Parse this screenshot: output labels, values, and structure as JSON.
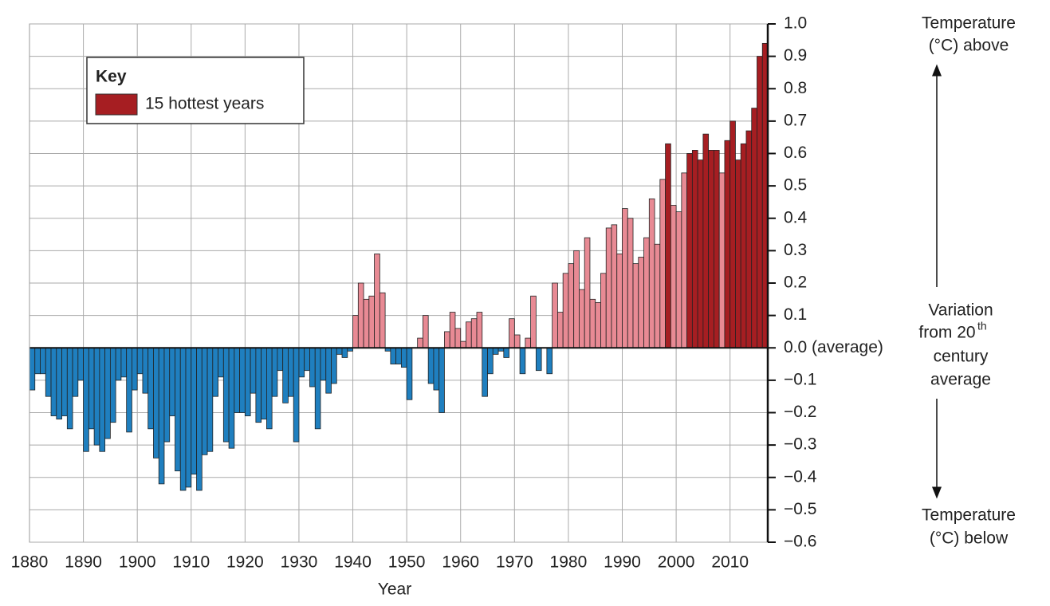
{
  "chart_data": {
    "type": "bar",
    "x_label": "Year",
    "legend": {
      "title": "Key",
      "label": "15 hottest years"
    },
    "annotations": {
      "above": [
        "Temperature",
        "(°C) above"
      ],
      "middle": [
        "Variation",
        "from 20",
        "century",
        "average"
      ],
      "middle_superscript": "th",
      "below": [
        "Temperature",
        "(°C) below"
      ]
    },
    "x": [
      1880,
      1881,
      1882,
      1883,
      1884,
      1885,
      1886,
      1887,
      1888,
      1889,
      1890,
      1891,
      1892,
      1893,
      1894,
      1895,
      1896,
      1897,
      1898,
      1899,
      1900,
      1901,
      1902,
      1903,
      1904,
      1905,
      1906,
      1907,
      1908,
      1909,
      1910,
      1911,
      1912,
      1913,
      1914,
      1915,
      1916,
      1917,
      1918,
      1919,
      1920,
      1921,
      1922,
      1923,
      1924,
      1925,
      1926,
      1927,
      1928,
      1929,
      1930,
      1931,
      1932,
      1933,
      1934,
      1935,
      1936,
      1937,
      1938,
      1939,
      1940,
      1941,
      1942,
      1943,
      1944,
      1945,
      1946,
      1947,
      1948,
      1949,
      1950,
      1951,
      1952,
      1953,
      1954,
      1955,
      1956,
      1957,
      1958,
      1959,
      1960,
      1961,
      1962,
      1963,
      1964,
      1965,
      1966,
      1967,
      1968,
      1969,
      1970,
      1971,
      1972,
      1973,
      1974,
      1975,
      1976,
      1977,
      1978,
      1979,
      1980,
      1981,
      1982,
      1983,
      1984,
      1985,
      1986,
      1987,
      1988,
      1989,
      1990,
      1991,
      1992,
      1993,
      1994,
      1995,
      1996,
      1997,
      1998,
      1999,
      2000,
      2001,
      2002,
      2003,
      2004,
      2005,
      2006,
      2007,
      2008,
      2009,
      2010,
      2011,
      2012,
      2013,
      2014,
      2015,
      2016
    ],
    "values": [
      -0.13,
      -0.08,
      -0.08,
      -0.15,
      -0.21,
      -0.22,
      -0.21,
      -0.25,
      -0.15,
      -0.1,
      -0.32,
      -0.25,
      -0.3,
      -0.32,
      -0.28,
      -0.23,
      -0.1,
      -0.09,
      -0.26,
      -0.13,
      -0.08,
      -0.14,
      -0.25,
      -0.34,
      -0.42,
      -0.29,
      -0.21,
      -0.38,
      -0.44,
      -0.43,
      -0.39,
      -0.44,
      -0.33,
      -0.32,
      -0.15,
      -0.09,
      -0.29,
      -0.31,
      -0.2,
      -0.2,
      -0.21,
      -0.14,
      -0.23,
      -0.22,
      -0.25,
      -0.15,
      -0.07,
      -0.17,
      -0.15,
      -0.29,
      -0.09,
      -0.07,
      -0.12,
      -0.25,
      -0.1,
      -0.14,
      -0.11,
      -0.02,
      -0.03,
      -0.01,
      0.1,
      0.2,
      0.15,
      0.16,
      0.29,
      0.17,
      -0.01,
      -0.05,
      -0.05,
      -0.06,
      -0.16,
      0.0,
      0.03,
      0.1,
      -0.11,
      -0.13,
      -0.2,
      0.05,
      0.11,
      0.06,
      0.02,
      0.08,
      0.09,
      0.11,
      -0.15,
      -0.08,
      -0.02,
      -0.01,
      -0.03,
      0.09,
      0.04,
      -0.08,
      0.03,
      0.16,
      -0.07,
      0.0,
      -0.08,
      0.2,
      0.11,
      0.23,
      0.26,
      0.3,
      0.18,
      0.34,
      0.15,
      0.14,
      0.23,
      0.37,
      0.38,
      0.29,
      0.43,
      0.4,
      0.26,
      0.28,
      0.34,
      0.46,
      0.32,
      0.52,
      0.63,
      0.44,
      0.42,
      0.54,
      0.6,
      0.61,
      0.58,
      0.66,
      0.61,
      0.61,
      0.54,
      0.64,
      0.7,
      0.58,
      0.63,
      0.67,
      0.74,
      0.9,
      0.94
    ],
    "hottest_years": [
      1998,
      2002,
      2003,
      2004,
      2005,
      2006,
      2007,
      2009,
      2010,
      2011,
      2012,
      2013,
      2014,
      2015,
      2016
    ],
    "color_negative": "#1f7fbf",
    "color_positive": "#e88a94",
    "color_hottest": "#a61e22",
    "xlim": [
      1880,
      2017
    ],
    "xticks": [
      1880,
      1890,
      1900,
      1910,
      1920,
      1930,
      1940,
      1950,
      1960,
      1970,
      1980,
      1990,
      2000,
      2010
    ],
    "ylim": [
      -0.6,
      1.0
    ],
    "yticks": [
      {
        "value": -0.6,
        "label": "−0.6"
      },
      {
        "value": -0.5,
        "label": "−0.5"
      },
      {
        "value": -0.4,
        "label": "−0.4"
      },
      {
        "value": -0.3,
        "label": "−0.3"
      },
      {
        "value": -0.2,
        "label": "−0.2"
      },
      {
        "value": -0.1,
        "label": "−0.1"
      },
      {
        "value": 0,
        "label": "0.0 (average)"
      },
      {
        "value": 0.1,
        "label": "0.1"
      },
      {
        "value": 0.2,
        "label": "0.2"
      },
      {
        "value": 0.3,
        "label": "0.3"
      },
      {
        "value": 0.4,
        "label": "0.4"
      },
      {
        "value": 0.5,
        "label": "0.5"
      },
      {
        "value": 0.6,
        "label": "0.6"
      },
      {
        "value": 0.7,
        "label": "0.7"
      },
      {
        "value": 0.8,
        "label": "0.8"
      },
      {
        "value": 0.9,
        "label": "0.9"
      },
      {
        "value": 1.0,
        "label": "1.0"
      }
    ],
    "grid": true
  }
}
